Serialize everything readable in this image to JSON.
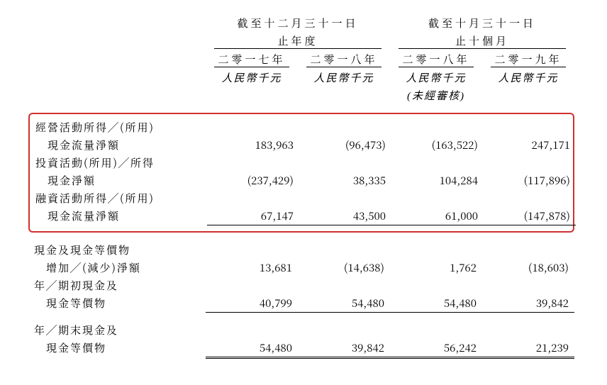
{
  "headers": {
    "group1": "截至十二月三十一日止年度",
    "group1_line1": "截至十二月三十一日",
    "group1_line2": "止年度",
    "group2_line1": "截至十月三十一日",
    "group2_line2": "止十個月",
    "col1": "二零一七年",
    "col2": "二零一八年",
    "col3": "二零一八年",
    "col4": "二零一九年",
    "unit": "人民幣千元",
    "unaudited": "(未經審核)"
  },
  "rows": {
    "r1a": "經營活動所得╱(所用)",
    "r1b": "　現金流量淨額",
    "r1": {
      "c1": "183,963",
      "c2": "(96,473)",
      "c3": "(163,522)",
      "c4": "247,171"
    },
    "r2a": "投資活動(所用)╱所得",
    "r2b": "　現金淨額",
    "r2": {
      "c1": "(237,429)",
      "c2": "38,335",
      "c3": "104,284",
      "c4": "(117,896)"
    },
    "r3a": "融資活動所得╱(所用)",
    "r3b": "　現金流量淨額",
    "r3": {
      "c1": "67,147",
      "c2": "43,500",
      "c3": "61,000",
      "c4": "(147,878)"
    },
    "r4a": "現金及現金等價物",
    "r4b": "　增加╱(減少)淨額",
    "r4": {
      "c1": "13,681",
      "c2": "(14,638)",
      "c3": "1,762",
      "c4": "(18,603)"
    },
    "r5a": "年╱期初現金及",
    "r5b": "　現金等價物",
    "r5": {
      "c1": "40,799",
      "c2": "54,480",
      "c3": "54,480",
      "c4": "39,842"
    },
    "r6a": "年╱期末現金及",
    "r6b": "　現金等價物",
    "r6": {
      "c1": "54,480",
      "c2": "39,842",
      "c3": "56,242",
      "c4": "21,239"
    }
  },
  "style": {
    "highlight_border": "#d03030",
    "text_color": "#000000",
    "background": "#ffffff"
  }
}
